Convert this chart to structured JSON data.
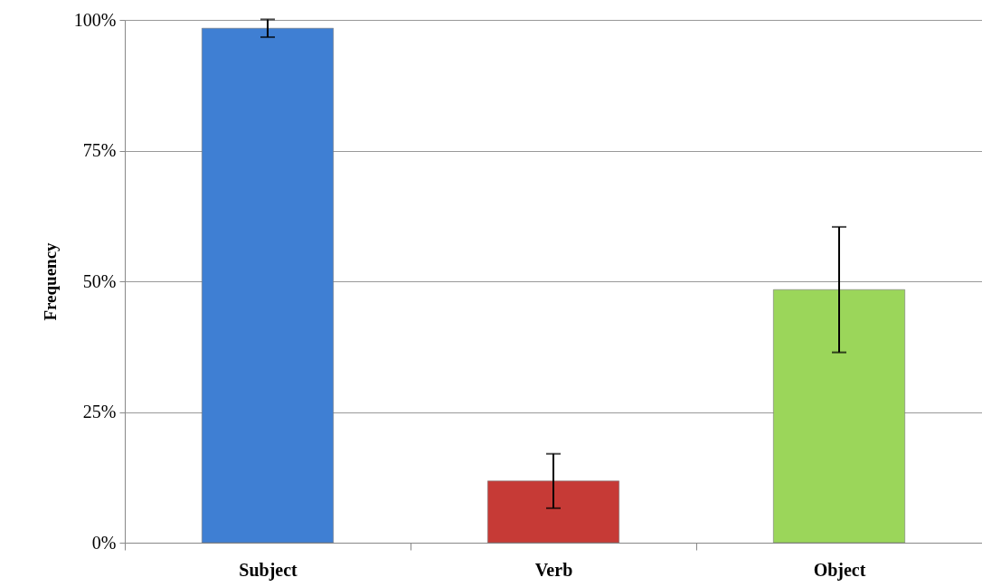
{
  "chart_data": {
    "type": "bar",
    "ylabel": "Frequency",
    "categories": [
      "Subject",
      "Verb",
      "Object"
    ],
    "values": [
      98.4,
      11.8,
      48.4
    ],
    "errors": [
      1.7,
      5.2,
      12
    ],
    "colors": [
      "#3f7fd3",
      "#c63a36",
      "#9bd65a"
    ],
    "ylim": [
      0,
      100
    ],
    "yticks": [
      {
        "value": 0,
        "label": "0%"
      },
      {
        "value": 25,
        "label": "25%"
      },
      {
        "value": 50,
        "label": "50%"
      },
      {
        "value": 75,
        "label": "75%"
      },
      {
        "value": 100,
        "label": "100%"
      }
    ],
    "grid": "y"
  }
}
